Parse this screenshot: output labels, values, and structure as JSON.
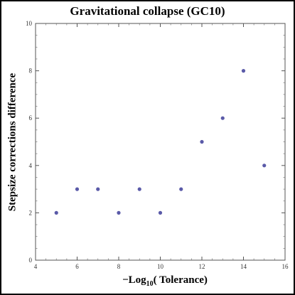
{
  "chart_data": {
    "type": "scatter",
    "title": "Gravitational collapse (GC10)",
    "xlabel_prefix": "−Log",
    "xlabel_sub": "10",
    "xlabel_suffix": "( Tolerance)",
    "ylabel": "Stepsize corrections difference",
    "xlim": [
      4,
      16
    ],
    "ylim": [
      0,
      10
    ],
    "xticks": [
      4,
      6,
      8,
      10,
      12,
      14,
      16
    ],
    "yticks": [
      0,
      2,
      4,
      6,
      8,
      10
    ],
    "x": [
      5,
      6,
      7,
      8,
      9,
      10,
      11,
      12,
      13,
      14,
      15
    ],
    "y": [
      2,
      3,
      3,
      2,
      3,
      2,
      3,
      5,
      6,
      8,
      4
    ],
    "point_color": "#5a5aa8",
    "grid": false
  }
}
